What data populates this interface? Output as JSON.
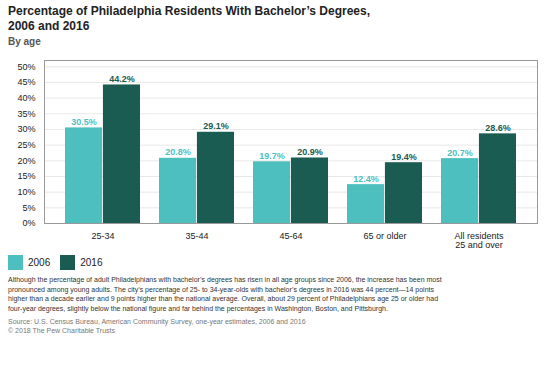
{
  "chart_data": {
    "type": "bar",
    "title": "Percentage of Philadelphia Residents With Bachelor’s Degrees,\n2006 and 2016",
    "subtitle": "By age",
    "categories": [
      "25-34",
      "35-44",
      "45-64",
      "65 or older",
      "All residents\n25 and over"
    ],
    "series": [
      {
        "name": "2006",
        "color": "#4dbfbf",
        "values": [
          30.5,
          20.8,
          19.7,
          12.4,
          20.7
        ],
        "value_labels": [
          "30.5%",
          "20.8%",
          "19.7%",
          "12.4%",
          "20.7%"
        ]
      },
      {
        "name": "2016",
        "color": "#1a5c52",
        "values": [
          44.2,
          29.1,
          20.9,
          19.4,
          28.6
        ],
        "value_labels": [
          "44.2%",
          "29.1%",
          "20.9%",
          "19.4%",
          "28.6%"
        ]
      }
    ],
    "ylim": [
      0,
      52
    ],
    "yticks": [
      {
        "value": 0,
        "label": "0%"
      },
      {
        "value": 5,
        "label": "5%"
      },
      {
        "value": 10,
        "label": "10%"
      },
      {
        "value": 15,
        "label": "15%"
      },
      {
        "value": 20,
        "label": "20%"
      },
      {
        "value": 25,
        "label": "25%"
      },
      {
        "value": 30,
        "label": "30%"
      },
      {
        "value": 35,
        "label": "35%"
      },
      {
        "value": 40,
        "label": "40%"
      },
      {
        "value": 45,
        "label": "45%"
      },
      {
        "value": 50,
        "label": "50%"
      }
    ],
    "grid": true,
    "legend": "bottom",
    "data_labels": true,
    "annotations": [
      "Although the percentage of adult Philadelphians with bachelor’s degrees has risen in all age groups since 2006, the increase has been most\npronounced among young adults. The city’s percentage of 25- to 34-year-olds with bachelor’s degrees in 2016 was 44 percent—14 points\nhigher than a decade earlier and 9 points higher than the national average. Overall, about 29 percent of Philadelphians age 25 or older had\nfour-year degrees, slightly below the national figure and far behind the percentages in Washington, Boston, and Pittsburgh.",
      "Source: U.S. Census Bureau, American Community Survey, one-year estimates, 2006 and 2016",
      "© 2018 The Pew Charitable Trusts"
    ]
  }
}
